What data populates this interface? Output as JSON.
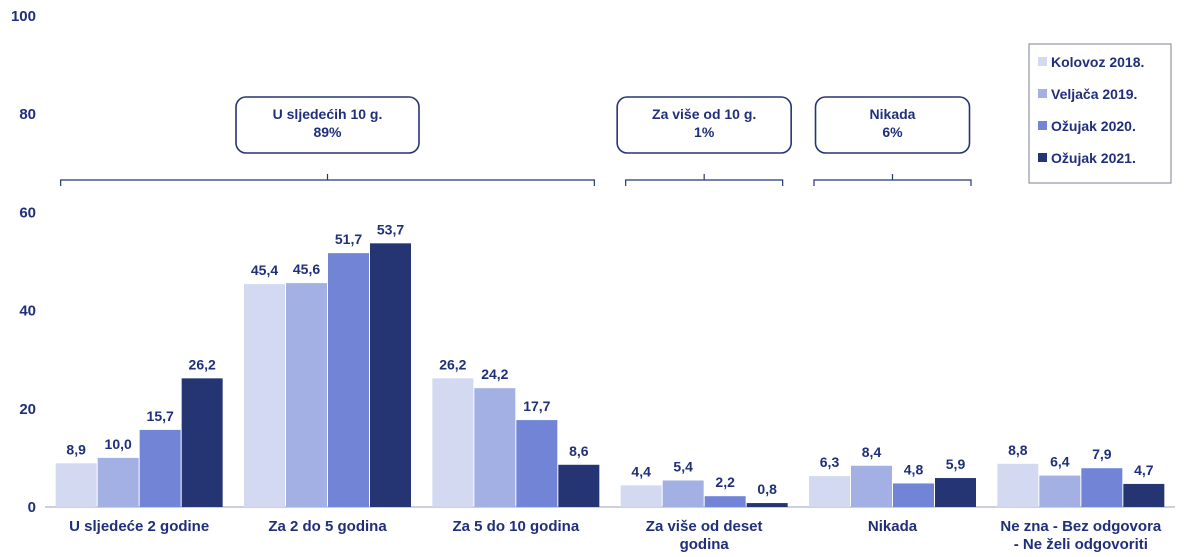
{
  "chart_data": {
    "type": "bar",
    "categories": [
      [
        "U sljedeće 2 godine"
      ],
      [
        "Za 2 do 5 godina"
      ],
      [
        "Za 5 do 10 godina"
      ],
      [
        "Za više od deset",
        "godina"
      ],
      [
        "Nikada"
      ],
      [
        "Ne zna - Bez odgovora",
        "- Ne želi odgovoriti"
      ]
    ],
    "series": [
      {
        "name": "Kolovoz 2018.",
        "values": [
          8.9,
          45.4,
          26.2,
          4.4,
          6.3,
          8.8
        ],
        "labels": [
          "8,9",
          "45,4",
          "26,2",
          "4,4",
          "6,3",
          "8,8"
        ],
        "color": "#d3d9f1"
      },
      {
        "name": "Veljača 2019.",
        "values": [
          10.0,
          45.6,
          24.2,
          5.4,
          8.4,
          6.4
        ],
        "labels": [
          "10,0",
          "45,6",
          "24,2",
          "5,4",
          "8,4",
          "6,4"
        ],
        "color": "#a3b0e4"
      },
      {
        "name": "Ožujak 2020.",
        "values": [
          15.7,
          51.7,
          17.7,
          2.2,
          4.8,
          7.9
        ],
        "labels": [
          "15,7",
          "51,7",
          "17,7",
          "2,2",
          "4,8",
          "7,9"
        ],
        "color": "#7184d6"
      },
      {
        "name": "Ožujak 2021.",
        "values": [
          26.2,
          53.7,
          8.6,
          0.8,
          5.9,
          4.7
        ],
        "labels": [
          "26,2",
          "53,7",
          "8,6",
          "0,8",
          "5,9",
          "4,7"
        ],
        "color": "#253574"
      }
    ],
    "ylim": [
      0,
      100
    ],
    "yticks": [
      0,
      20,
      40,
      60,
      80,
      100
    ],
    "title": "",
    "xlabel": "",
    "ylabel": "",
    "grid": false,
    "legend_position": "top-right",
    "annotations": [
      {
        "lines": [
          "U sljedećih 10 g.",
          "89%"
        ],
        "spans": [
          0,
          2
        ]
      },
      {
        "lines": [
          "Za više od 10 g.",
          "1%"
        ],
        "spans": [
          3,
          3
        ]
      },
      {
        "lines": [
          "Nikada",
          "6%"
        ],
        "spans": [
          4,
          4
        ]
      }
    ]
  }
}
